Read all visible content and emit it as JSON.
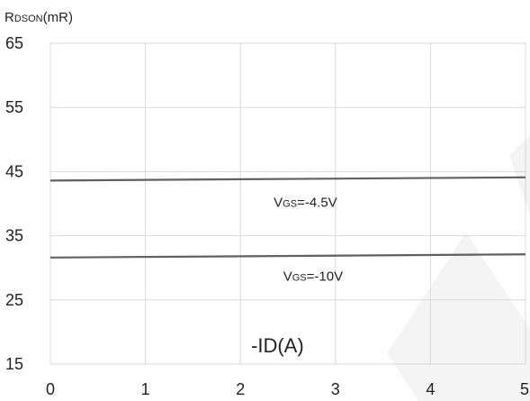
{
  "chart_data": {
    "type": "line",
    "ylabel": {
      "main": "R",
      "sub": "DSON",
      "unit": "(mR)"
    },
    "xlabel": "-ID(A)",
    "x_ticks": [
      "0",
      "1",
      "2",
      "3",
      "4",
      "5"
    ],
    "y_ticks": [
      "15",
      "25",
      "35",
      "45",
      "55",
      "65"
    ],
    "xlim": [
      0,
      5
    ],
    "ylim": [
      15,
      65
    ],
    "grid": true,
    "series": [
      {
        "name": "VGS=-4.5V",
        "x": [
          0,
          5
        ],
        "y": [
          43.6,
          44.1
        ]
      },
      {
        "name": "VGS=-10V",
        "x": [
          0,
          5
        ],
        "y": [
          31.6,
          32.1
        ]
      }
    ],
    "annotations": [
      {
        "main": "V",
        "sub": "GS",
        "rest": "=-4.5V",
        "x": 2.35,
        "y": 39.5
      },
      {
        "main": "V",
        "sub": "GS",
        "rest": "=-10V",
        "x": 2.45,
        "y": 28.0
      }
    ],
    "colors": {
      "line": "#606060",
      "grid": "#d9d9d9",
      "text": "#222222"
    }
  }
}
